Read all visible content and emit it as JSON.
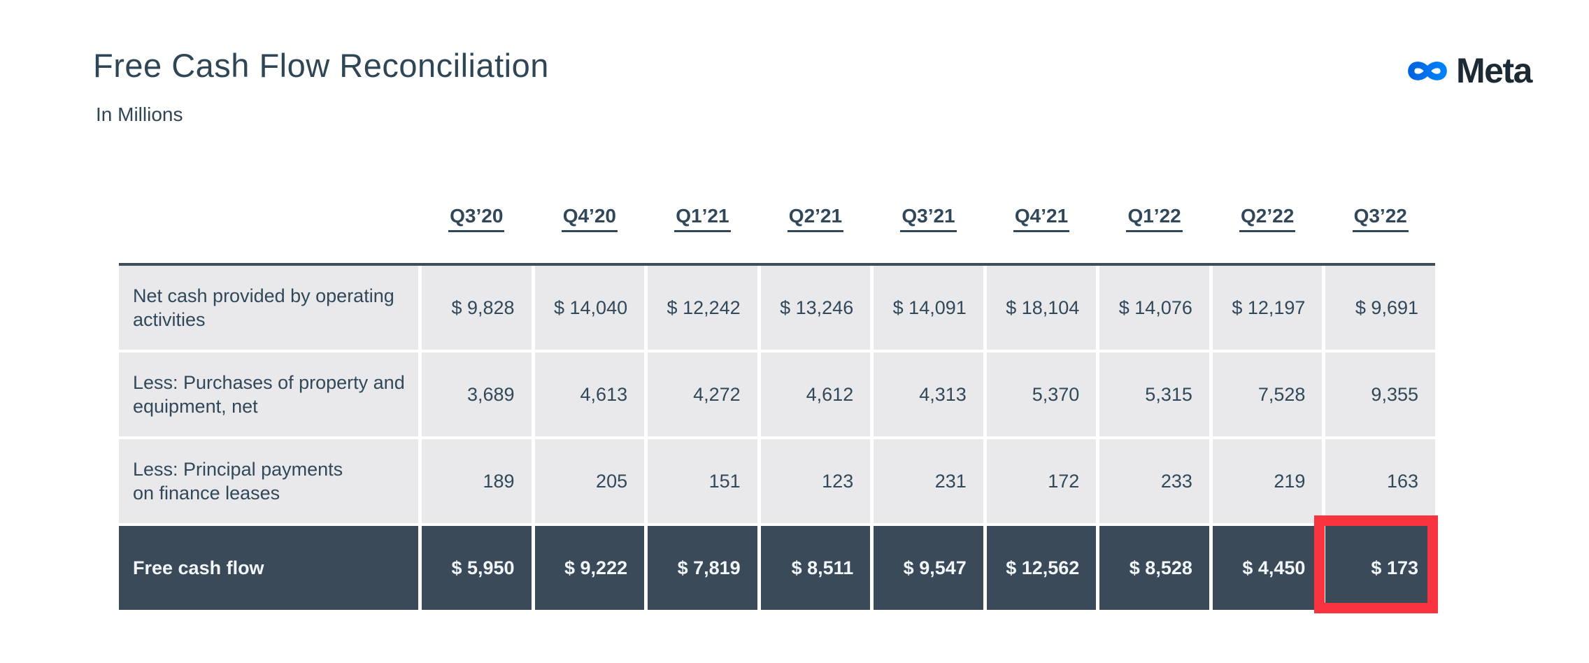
{
  "slide": {
    "title": "Free Cash Flow Reconciliation",
    "subtitle": "In Millions"
  },
  "logo": {
    "brand": "Meta",
    "icon": "meta-infinity-icon",
    "gradient_start": "#0064E0",
    "gradient_end": "#0082FB",
    "wordmark_color": "#1C2B33"
  },
  "colors": {
    "heading_text": "#2E4656",
    "table_text": "#31485A",
    "row_light_bg": "#E9E9EB",
    "row_dark_bg": "#3A4A59",
    "row_dark_text": "#F3F6F8",
    "table_top_border": "#3F4D59",
    "highlight_red": "#F8343F"
  },
  "table": {
    "columns": [
      "Q3’20",
      "Q4’20",
      "Q1’21",
      "Q2’21",
      "Q3’21",
      "Q4’21",
      "Q1’22",
      "Q2’22",
      "Q3’22"
    ],
    "rows": [
      {
        "label": "Net cash provided by operating\nactivities",
        "style": "light",
        "values": [
          "$ 9,828",
          "$ 14,040",
          "$ 12,242",
          "$ 13,246",
          "$ 14,091",
          "$ 18,104",
          "$ 14,076",
          "$ 12,197",
          "$ 9,691"
        ]
      },
      {
        "label": "Less: Purchases of property and\nequipment, net",
        "style": "light",
        "values": [
          "3,689",
          "4,613",
          "4,272",
          "4,612",
          "4,313",
          "5,370",
          "5,315",
          "7,528",
          "9,355"
        ]
      },
      {
        "label": "Less: Principal payments\non finance leases",
        "style": "light",
        "values": [
          "189",
          "205",
          "151",
          "123",
          "231",
          "172",
          "233",
          "219",
          "163"
        ]
      },
      {
        "label": "Free cash flow",
        "style": "dark",
        "values": [
          "$ 5,950",
          "$ 9,222",
          "$ 7,819",
          "$ 8,511",
          "$ 9,547",
          "$ 12,562",
          "$ 8,528",
          "$ 4,450",
          "$ 173"
        ]
      }
    ],
    "highlight": {
      "row_label": "Free cash flow",
      "column": "Q3’22",
      "value": "$ 173"
    }
  },
  "chart_data": {
    "type": "table",
    "title": "Free Cash Flow Reconciliation",
    "units": "In Millions",
    "categories": [
      "Q3’20",
      "Q4’20",
      "Q1’21",
      "Q2’21",
      "Q3’21",
      "Q4’21",
      "Q1’22",
      "Q2’22",
      "Q3’22"
    ],
    "series": [
      {
        "name": "Net cash provided by operating activities",
        "values": [
          9828,
          14040,
          12242,
          13246,
          14091,
          18104,
          14076,
          12197,
          9691
        ]
      },
      {
        "name": "Less: Purchases of property and equipment, net",
        "values": [
          3689,
          4613,
          4272,
          4612,
          4313,
          5370,
          5315,
          7528,
          9355
        ]
      },
      {
        "name": "Less: Principal payments on finance leases",
        "values": [
          189,
          205,
          151,
          123,
          231,
          172,
          233,
          219,
          163
        ]
      },
      {
        "name": "Free cash flow",
        "values": [
          5950,
          9222,
          7819,
          8511,
          9547,
          12562,
          8528,
          4450,
          173
        ]
      }
    ]
  }
}
